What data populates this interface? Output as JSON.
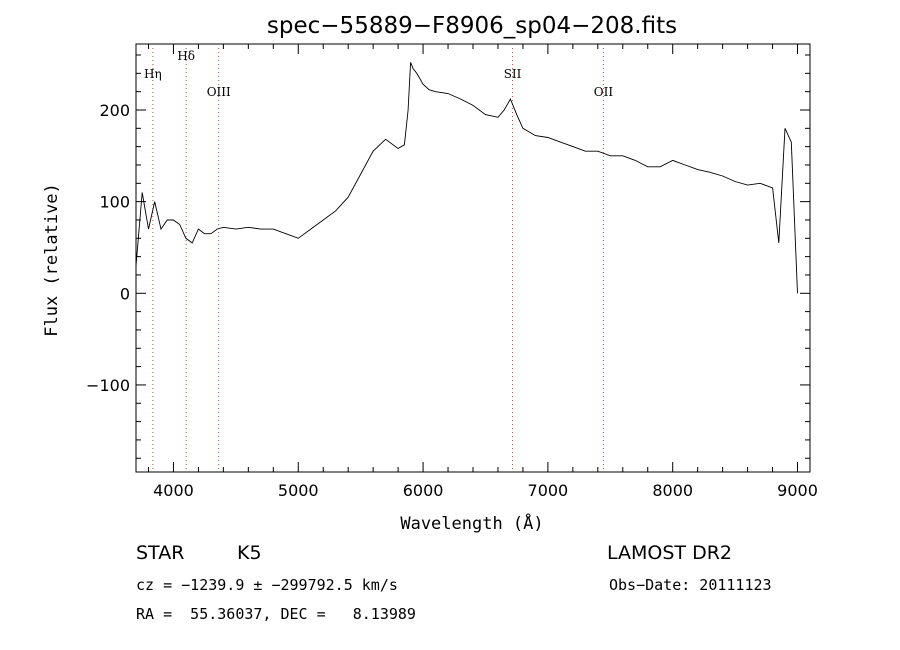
{
  "chart_data": {
    "type": "line",
    "title": "spec−55889−F8906_sp04−208.fits",
    "xlabel": "Wavelength (Å)",
    "ylabel": "Flux (relative)",
    "xlim": [
      3700,
      9100
    ],
    "ylim": [
      -195,
      272
    ],
    "x_ticks": [
      4000,
      5000,
      6000,
      7000,
      8000,
      9000
    ],
    "x_tick_labels": [
      "4000",
      "5000",
      "6000",
      "7000",
      "8000",
      "9000"
    ],
    "y_ticks": [
      -100,
      0,
      100,
      200
    ],
    "y_tick_labels": [
      "−100",
      "0",
      "100",
      "200"
    ],
    "grid": false,
    "series": [
      {
        "x": [
          3700,
          3750,
          3800,
          3850,
          3900,
          3950,
          4000,
          4050,
          4100,
          4150,
          4200,
          4250,
          4300,
          4350,
          4400,
          4500,
          4600,
          4700,
          4800,
          4900,
          5000,
          5100,
          5200,
          5300,
          5400,
          5500,
          5600,
          5700,
          5800,
          5850,
          5880,
          5900,
          5920,
          5950,
          6000,
          6050,
          6100,
          6200,
          6300,
          6400,
          6500,
          6600,
          6650,
          6700,
          6750,
          6800,
          6900,
          7000,
          7100,
          7200,
          7300,
          7400,
          7500,
          7600,
          7700,
          7800,
          7900,
          8000,
          8100,
          8200,
          8300,
          8400,
          8500,
          8600,
          8700,
          8800,
          8850,
          8900,
          8950,
          9000
        ],
        "y": [
          30,
          110,
          70,
          100,
          70,
          80,
          80,
          75,
          60,
          55,
          70,
          65,
          65,
          70,
          72,
          70,
          72,
          70,
          70,
          65,
          60,
          70,
          80,
          90,
          105,
          130,
          155,
          168,
          158,
          162,
          200,
          252,
          245,
          240,
          228,
          222,
          220,
          218,
          212,
          205,
          195,
          192,
          200,
          212,
          195,
          180,
          172,
          170,
          165,
          160,
          155,
          155,
          150,
          150,
          145,
          138,
          138,
          145,
          140,
          135,
          132,
          128,
          122,
          118,
          120,
          115,
          55,
          180,
          165,
          0
        ]
      }
    ],
    "lines": [
      {
        "label": "Hη",
        "x": 3835
      },
      {
        "label": "Hδ",
        "x": 4102
      },
      {
        "label": "OIII",
        "x": 4363
      },
      {
        "label": "SII",
        "x": 6717
      },
      {
        "label": "OII",
        "x": 7445
      }
    ]
  },
  "footer": {
    "object_class": "STAR",
    "subclass": "K5",
    "survey": "LAMOST DR2",
    "cz": "cz = −1239.9 ± −299792.5 km/s",
    "obs_date": "Obs−Date: 20111123",
    "coords": "RA =  55.36037, DEC =   8.13989"
  }
}
